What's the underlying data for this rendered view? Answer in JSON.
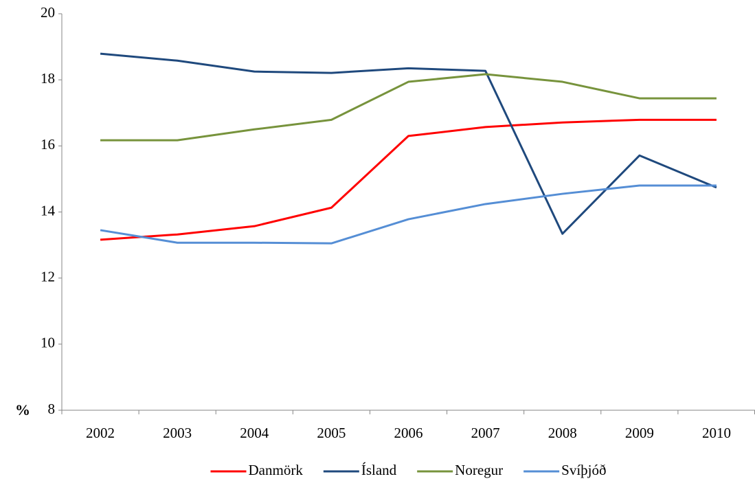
{
  "chart_data": {
    "type": "line",
    "y_label": "%",
    "categories": [
      "2002",
      "2003",
      "2004",
      "2005",
      "2006",
      "2007",
      "2008",
      "2009",
      "2010"
    ],
    "series": [
      {
        "name": "Danmörk",
        "color": "#ff0000",
        "values": [
          13.16,
          13.32,
          13.57,
          14.13,
          16.3,
          16.57,
          16.71,
          16.79,
          16.79
        ]
      },
      {
        "name": "Ísland",
        "color": "#1f497d",
        "values": [
          18.79,
          18.58,
          18.25,
          18.21,
          18.35,
          18.27,
          13.34,
          15.71,
          14.74
        ]
      },
      {
        "name": "Noregur",
        "color": "#77933c",
        "values": [
          16.17,
          16.17,
          16.5,
          16.79,
          17.94,
          18.17,
          17.94,
          17.44,
          17.44
        ]
      },
      {
        "name": "Svíþjóð",
        "color": "#558ed5",
        "values": [
          13.45,
          13.07,
          13.07,
          13.05,
          13.78,
          14.24,
          14.55,
          14.8,
          14.8
        ]
      }
    ],
    "ylim": [
      8,
      20
    ],
    "yticks": [
      8,
      10,
      12,
      14,
      16,
      18,
      20
    ],
    "grid": false,
    "legend": "bottom"
  }
}
